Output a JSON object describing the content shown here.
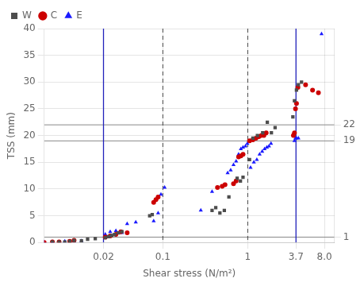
{
  "chart_data": {
    "type": "scatter",
    "xlabel": "Shear stress (N/m²)",
    "ylabel": "TSS (mm)",
    "log": "x",
    "xlim": [
      0.004,
      10.5
    ],
    "xticks": [
      0.02,
      0.1,
      1,
      3.7,
      {
        "value": 8,
        "label": "8.0"
      }
    ],
    "ylim": [
      0,
      40
    ],
    "yticks": [
      0,
      5,
      10,
      15,
      20,
      25,
      30,
      35,
      40
    ],
    "y2lim": [
      0,
      40
    ],
    "y2ticks": [
      1,
      19,
      22
    ],
    "grid": true,
    "legend": "upper left",
    "series": [
      {
        "name": "W",
        "color": "#4d4d4d",
        "marker": "square",
        "x": [
          0.005,
          0.006,
          0.007,
          0.008,
          0.009,
          0.011,
          0.013,
          0.016,
          0.021,
          0.023,
          0.025,
          0.027,
          0.03,
          0.033,
          0.07,
          0.075,
          0.38,
          0.42,
          0.47,
          0.53,
          0.6,
          0.75,
          0.82,
          0.88,
          1.05,
          1.15,
          1.3,
          1.5,
          1.7,
          1.9,
          2.1,
          3.4,
          3.55,
          3.75,
          3.95,
          4.3
        ],
        "values": [
          0.1,
          0.1,
          0.1,
          0.2,
          0.4,
          0.3,
          0.6,
          0.7,
          0.9,
          1.1,
          1.3,
          1.5,
          1.8,
          2.0,
          5.0,
          5.2,
          6.0,
          6.5,
          5.5,
          6.0,
          8.5,
          12.0,
          11.5,
          12.2,
          15.5,
          19.5,
          20.0,
          20.5,
          22.5,
          20.5,
          21.5,
          23.5,
          26.5,
          28.5,
          29.5,
          30.0
        ]
      },
      {
        "name": "C",
        "color": "#cc0000",
        "marker": "circle",
        "x": [
          0.004,
          0.005,
          0.006,
          0.008,
          0.009,
          0.021,
          0.024,
          0.028,
          0.032,
          0.038,
          0.078,
          0.083,
          0.088,
          0.44,
          0.5,
          0.54,
          0.68,
          0.73,
          0.78,
          0.83,
          0.88,
          1.05,
          1.15,
          1.25,
          1.35,
          1.45,
          1.55,
          1.65,
          3.45,
          3.55,
          3.65,
          3.75,
          3.9,
          4.8,
          5.8,
          6.8
        ],
        "values": [
          0.0,
          0.1,
          0.1,
          0.2,
          0.4,
          1.0,
          1.2,
          1.5,
          2.0,
          1.8,
          7.5,
          8.0,
          8.5,
          10.3,
          10.5,
          10.8,
          11.0,
          11.5,
          16.0,
          16.2,
          16.5,
          19.0,
          19.2,
          19.5,
          19.8,
          20.0,
          20.0,
          20.5,
          20.0,
          20.5,
          25.0,
          26.0,
          29.0,
          29.5,
          28.5,
          28.0
        ]
      },
      {
        "name": "E",
        "color": "#1a1aff",
        "marker": "triangle",
        "x": [
          0.004,
          0.005,
          0.007,
          0.009,
          0.011,
          0.021,
          0.024,
          0.028,
          0.033,
          0.038,
          0.048,
          0.078,
          0.088,
          0.095,
          0.105,
          0.28,
          0.38,
          0.58,
          0.63,
          0.68,
          0.73,
          0.78,
          0.83,
          0.88,
          0.94,
          0.99,
          1.08,
          1.18,
          1.28,
          1.38,
          1.48,
          1.58,
          1.68,
          1.78,
          1.88,
          3.55,
          3.65,
          3.75,
          3.95,
          7.4
        ],
        "values": [
          0.1,
          0.1,
          0.2,
          0.2,
          0.3,
          1.5,
          2.0,
          2.2,
          1.8,
          3.5,
          3.8,
          4.0,
          5.5,
          9.0,
          10.3,
          6.0,
          9.5,
          13.0,
          13.5,
          14.5,
          15.2,
          16.5,
          17.5,
          17.8,
          18.0,
          18.5,
          14.0,
          15.0,
          15.5,
          16.5,
          17.0,
          17.5,
          17.8,
          18.0,
          18.5,
          19.0,
          19.5,
          19.5,
          19.5,
          39.0
        ]
      }
    ],
    "vlines": [
      {
        "value": 0.02,
        "color": "#2222bb",
        "line_style": "solid"
      },
      {
        "value": 3.7,
        "color": "#2222bb",
        "line_style": "solid"
      },
      {
        "value": 0.1,
        "color": "#444444",
        "line_style": "dashed"
      },
      {
        "value": 1,
        "color": "#444444",
        "line_style": "dashed"
      }
    ],
    "hlines": [
      {
        "value": 1,
        "color": "#888888",
        "line_style": "solid"
      },
      {
        "value": 19,
        "color": "#888888",
        "line_style": "solid"
      },
      {
        "value": 22,
        "color": "#888888",
        "line_style": "solid"
      }
    ]
  }
}
